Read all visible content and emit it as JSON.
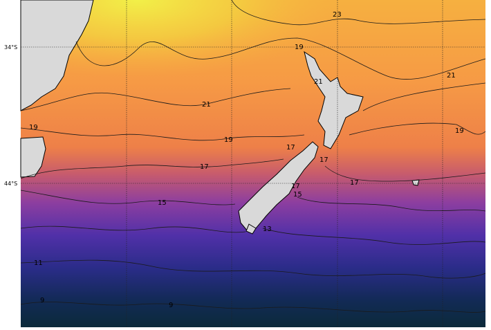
{
  "map": {
    "latitude_labels": [
      "34°S",
      "44°S"
    ],
    "contour_labels": [
      "23",
      "19",
      "21",
      "21",
      "21",
      "19",
      "19",
      "19",
      "17",
      "17",
      "17",
      "17",
      "17",
      "15",
      "15",
      "13",
      "11",
      "9",
      "9"
    ]
  }
}
